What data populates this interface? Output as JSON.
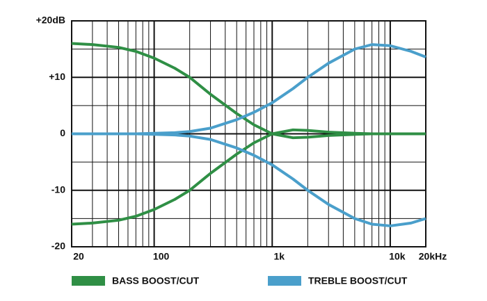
{
  "chart_data": {
    "type": "line",
    "log_x": true,
    "x": [
      20,
      30,
      50,
      70,
      100,
      150,
      200,
      300,
      500,
      700,
      1000,
      1500,
      2000,
      3000,
      5000,
      7000,
      10000,
      15000,
      20000
    ],
    "series": [
      {
        "name": "BASS BOOST/CUT",
        "color": "#2f8f45",
        "boost": [
          16,
          15.8,
          15.3,
          14.6,
          13.4,
          11.6,
          10,
          7,
          3.6,
          1.6,
          0,
          -0.7,
          -0.6,
          -0.3,
          -0.1,
          0,
          0,
          0,
          0
        ],
        "cut": [
          -16,
          -15.8,
          -15.3,
          -14.6,
          -13.4,
          -11.6,
          -10,
          -7,
          -3.6,
          -1.6,
          0,
          0.7,
          0.6,
          0.3,
          0.1,
          0,
          0,
          0,
          0
        ]
      },
      {
        "name": "TREBLE BOOST/CUT",
        "color": "#4a9fcb",
        "boost": [
          0,
          0,
          0,
          0,
          0.1,
          0.2,
          0.4,
          1,
          2.5,
          3.8,
          5.5,
          8,
          10,
          12.5,
          15,
          15.8,
          15.6,
          14.6,
          13.6
        ],
        "cut": [
          0,
          0,
          0,
          0,
          -0.1,
          -0.2,
          -0.4,
          -1,
          -2.5,
          -3.8,
          -5.5,
          -8,
          -10,
          -12.5,
          -15,
          -16,
          -16.3,
          -15.8,
          -15
        ]
      }
    ],
    "xlim": [
      20,
      20000
    ],
    "xticks": [
      20,
      100,
      {
        "value": 1000,
        "label": "1k"
      },
      {
        "value": 10000,
        "label": "10k"
      },
      {
        "value": 20000,
        "label": "20kHz"
      }
    ],
    "x_minor_grid": [
      30,
      40,
      50,
      60,
      70,
      80,
      90,
      200,
      300,
      400,
      500,
      600,
      700,
      800,
      900,
      2000,
      3000,
      4000,
      5000,
      6000,
      7000,
      8000,
      9000
    ],
    "ylim": [
      -20,
      20
    ],
    "yticks": [
      -20,
      -10,
      0,
      {
        "value": 10,
        "label": "+10"
      },
      {
        "value": 20,
        "label": "+20dB"
      }
    ],
    "y_minor_grid": [
      -15,
      -5,
      5,
      15
    ],
    "grid": true
  }
}
